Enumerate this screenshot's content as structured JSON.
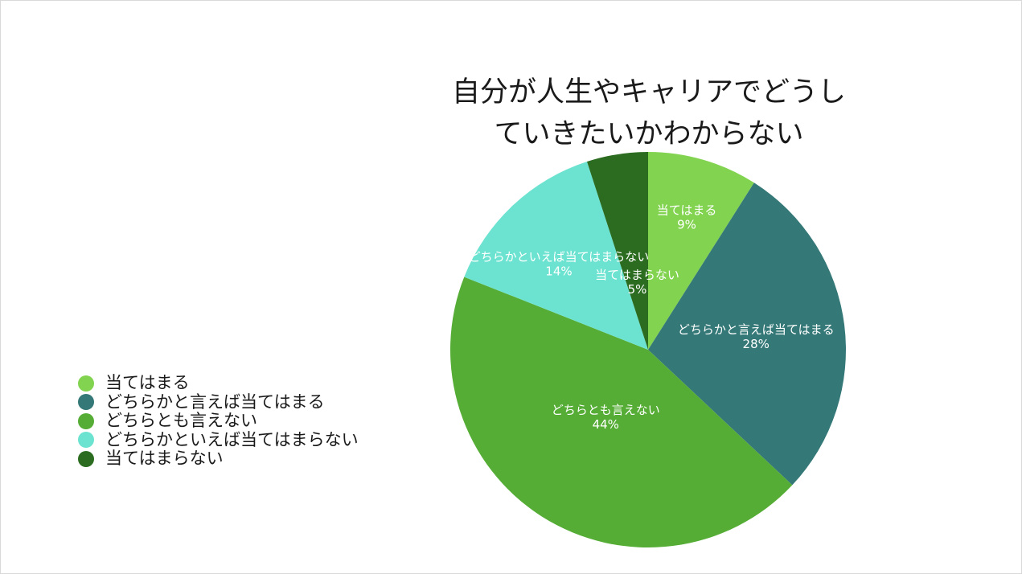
{
  "chart_data": {
    "type": "pie",
    "title": "自分が人生やキャリアでどうしていきたいかわからない",
    "start_angle_deg": 0,
    "direction": "clockwise",
    "legend_position": "left",
    "slices": [
      {
        "label": "当てはまる",
        "value": 9,
        "value_label": "9%",
        "color": "#82d450"
      },
      {
        "label": "どちらかと言えば当てはまる",
        "value": 28,
        "value_label": "28%",
        "color": "#347877"
      },
      {
        "label": "どちらとも言えない",
        "value": 44,
        "value_label": "44%",
        "color": "#55ad35"
      },
      {
        "label": "どちらかといえば当てはまらない",
        "value": 14,
        "value_label": "14%",
        "color": "#6ce3d0"
      },
      {
        "label": "当てはまらない",
        "value": 5,
        "value_label": "5%",
        "color": "#2c6c20"
      }
    ]
  }
}
